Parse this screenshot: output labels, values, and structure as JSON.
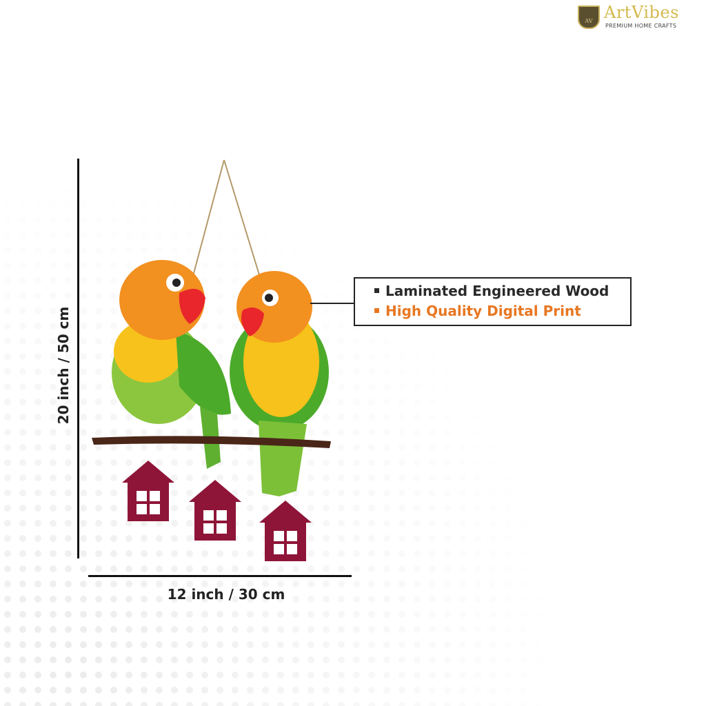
{
  "brand": {
    "name": "ArtVibes",
    "tagline": "PREMIUM HOME CRAFTS",
    "badge_text": "AV",
    "color": "#d4b94c"
  },
  "dimensions": {
    "height_label": "20 inch / 50 cm",
    "width_label": "12 inch / 30 cm"
  },
  "features": [
    {
      "text": "Laminated Engineered Wood",
      "color": "#2a2a2a"
    },
    {
      "text": "High Quality Digital Print",
      "color": "#e87722"
    }
  ],
  "product": {
    "house_color": "#8e1538"
  }
}
